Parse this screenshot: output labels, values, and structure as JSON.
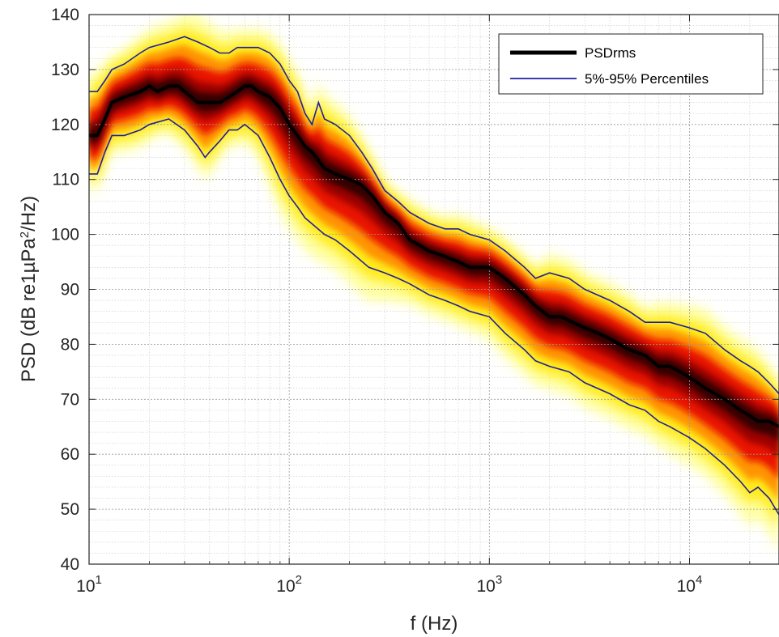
{
  "chart_data": {
    "type": "line",
    "subtype": "probability density heatmap with percentile curves",
    "title": "",
    "xlabel": "f (Hz)",
    "ylabel_parts": {
      "main": "PSD (dB re1µPa",
      "sup": "2",
      "tail": "/Hz)"
    },
    "x_scale": "log",
    "xlim": [
      10,
      28000
    ],
    "ylim": [
      40,
      140
    ],
    "x_ticks": [
      10,
      100,
      1000,
      10000
    ],
    "x_tick_labels": [
      {
        "base": "10",
        "exp": "1"
      },
      {
        "base": "10",
        "exp": "2"
      },
      {
        "base": "10",
        "exp": "3"
      },
      {
        "base": "10",
        "exp": "4"
      }
    ],
    "y_ticks": [
      40,
      50,
      60,
      70,
      80,
      90,
      100,
      110,
      120,
      130,
      140
    ],
    "y_tick_labels": [
      "40",
      "50",
      "60",
      "70",
      "80",
      "90",
      "100",
      "110",
      "120",
      "130",
      "140"
    ],
    "grid": true,
    "minor_grid": true,
    "legend_position": "top-right",
    "colors": {
      "psdrms": "#000000",
      "percentiles": "#1f1fa0",
      "heat_core": "#1a0000",
      "heat_mid": "#e00000",
      "heat_edge": "#ffff00"
    },
    "series": [
      {
        "name": "PSDrms",
        "x": [
          10,
          11,
          12,
          13,
          15,
          18,
          20,
          22,
          25,
          28,
          30,
          35,
          40,
          45,
          50,
          55,
          60,
          65,
          70,
          80,
          90,
          100,
          110,
          120,
          130,
          150,
          170,
          200,
          230,
          260,
          300,
          350,
          400,
          450,
          500,
          600,
          700,
          800,
          900,
          1000,
          1200,
          1500,
          1700,
          2000,
          2300,
          2600,
          3000,
          3500,
          4000,
          5000,
          6000,
          7000,
          8000,
          9000,
          10000,
          12000,
          15000,
          18000,
          20000,
          22000,
          25000,
          28000
        ],
        "y": [
          118,
          118,
          121,
          124,
          125,
          126,
          127,
          126,
          127,
          127,
          126,
          124,
          124,
          124,
          125,
          126,
          127,
          127,
          126,
          125,
          123,
          120,
          118,
          116,
          115,
          112,
          111,
          110,
          109,
          107,
          104,
          102,
          99,
          98,
          97,
          96,
          95,
          94,
          94,
          94,
          92,
          89,
          87,
          85,
          85,
          84,
          83,
          82,
          81,
          79,
          78,
          76,
          76,
          75,
          74,
          72,
          70,
          68,
          67,
          66,
          66,
          65
        ]
      },
      {
        "name": "5%-95% Percentiles",
        "role": "upper",
        "x": [
          10,
          11,
          12,
          13,
          15,
          18,
          20,
          25,
          30,
          35,
          40,
          45,
          50,
          55,
          60,
          70,
          80,
          90,
          100,
          110,
          120,
          130,
          140,
          150,
          170,
          200,
          230,
          260,
          300,
          350,
          400,
          500,
          600,
          700,
          800,
          1000,
          1200,
          1500,
          1700,
          2000,
          2500,
          3000,
          4000,
          5000,
          6000,
          7000,
          8000,
          10000,
          12000,
          15000,
          18000,
          20000,
          22000,
          25000,
          28000
        ],
        "y": [
          126,
          126,
          128,
          130,
          131,
          133,
          134,
          135,
          136,
          135,
          134,
          133,
          133,
          134,
          134,
          134,
          133,
          131,
          128,
          126,
          122,
          120,
          124,
          121,
          120,
          118,
          115,
          112,
          108,
          106,
          104,
          102,
          101,
          101,
          100,
          99,
          97,
          94,
          92,
          93,
          92,
          90,
          88,
          86,
          84,
          84,
          84,
          83,
          82,
          79,
          77,
          76,
          75,
          73,
          71
        ]
      },
      {
        "name": "5%-95% Percentiles",
        "role": "lower",
        "x": [
          10,
          11,
          12,
          13,
          15,
          18,
          20,
          25,
          30,
          35,
          38,
          40,
          45,
          50,
          55,
          60,
          70,
          80,
          90,
          100,
          110,
          120,
          150,
          170,
          200,
          250,
          300,
          350,
          400,
          500,
          600,
          700,
          800,
          1000,
          1200,
          1500,
          1700,
          2000,
          2500,
          3000,
          4000,
          5000,
          6000,
          7000,
          8000,
          10000,
          12000,
          15000,
          18000,
          20000,
          22000,
          25000,
          28000
        ],
        "y": [
          111,
          111,
          115,
          118,
          118,
          119,
          120,
          121,
          119,
          116,
          114,
          115,
          117,
          119,
          119,
          120,
          118,
          114,
          110,
          107,
          105,
          103,
          100,
          99,
          97,
          94,
          93,
          92,
          91,
          89,
          88,
          87,
          86,
          85,
          82,
          79,
          77,
          76,
          75,
          73,
          71,
          69,
          68,
          66,
          65,
          63,
          61,
          58,
          55,
          53,
          54,
          52,
          49
        ]
      }
    ]
  }
}
